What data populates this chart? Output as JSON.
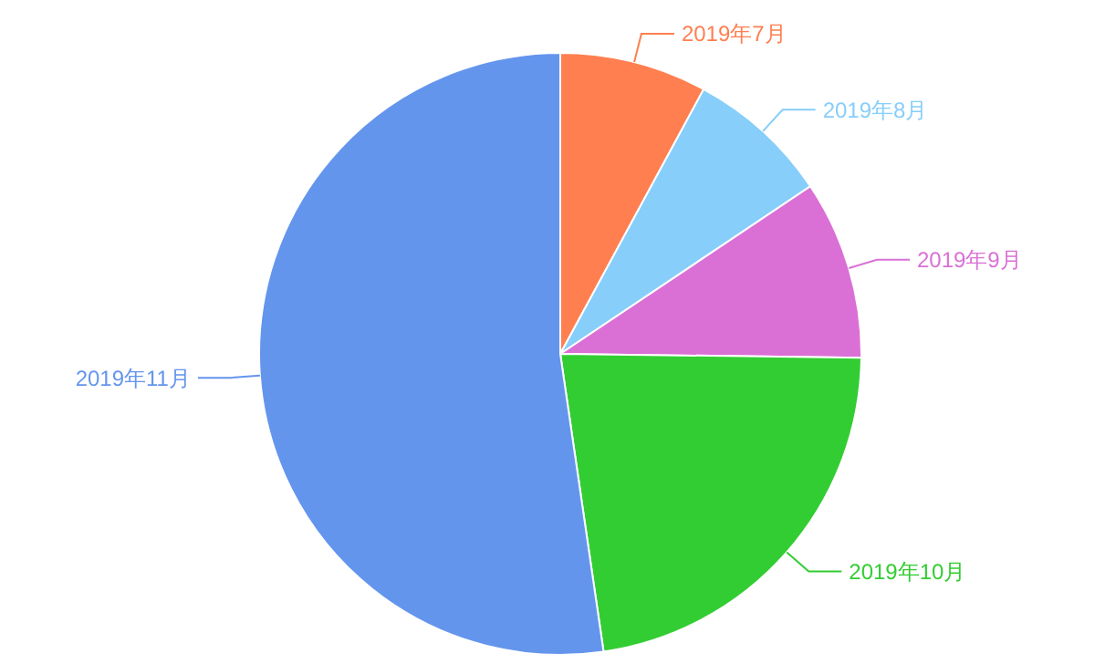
{
  "chart_data": {
    "type": "pie",
    "categories": [
      "2019年7月",
      "2019年8月",
      "2019年9月",
      "2019年10月",
      "2019年11月"
    ],
    "values": [
      7.9,
      7.7,
      9.6,
      22.5,
      52.3
    ],
    "colors": [
      "#ff7f50",
      "#87cefa",
      "#da70d6",
      "#32cd32",
      "#6495ed"
    ]
  }
}
